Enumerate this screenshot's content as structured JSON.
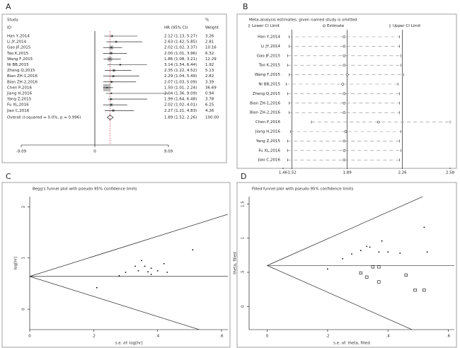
{
  "chart_data": [
    {
      "type": "forest",
      "panel": "A",
      "header": [
        "Study",
        "ID",
        "HR (95% CI)",
        "%",
        "Weight"
      ],
      "studies": [
        "Han Y,2014",
        "Li JY,2014",
        "Gao JF,2015",
        "Tao K,2015",
        "Wang F,2015",
        "Ni BB,2015",
        "Zheng Q,2015",
        "Bian ZH-1,2016",
        "Bian ZH-2,2016",
        "Chen P,2016",
        "Jiang H,2016",
        "Yang Z,2015",
        "Fu XL,2016",
        "Jiao C,2016"
      ],
      "hr": [
        2.12,
        2.63,
        2.02,
        2.0,
        1.86,
        3.14,
        2.35,
        2.29,
        2.07,
        1.5,
        2.04,
        1.99,
        2.02,
        2.27
      ],
      "lower": [
        1.13,
        1.42,
        1.02,
        1.01,
        1.08,
        1.54,
        1.22,
        1.04,
        1.03,
        1.01,
        1.36,
        1.64,
        1.02,
        1.21
      ],
      "upper": [
        5.27,
        5.85,
        3.37,
        3.96,
        3.21,
        6.44,
        4.52,
        5.49,
        5.09,
        2.24,
        9.09,
        6.48,
        4.01,
        4.83
      ],
      "ci_labels": [
        "2.12 (1.13, 5.27)",
        "2.63 (1.42, 5.85)",
        "2.02 (1.02, 3.37)",
        "2.00 (1.01, 3.96)",
        "1.86 (1.08, 3.21)",
        "3.14 (1.54, 6.44)",
        "2.35 (1.22, 4.52)",
        "2.29 (1.04, 5.49)",
        "2.07 (1.03, 5.09)",
        "1.50 (1.01, 2.24)",
        "2.04 (1.36, 9.09)",
        "1.99 (1.64, 6.48)",
        "2.02 (1.02, 4.01)",
        "2.27 (1.21, 4.83)"
      ],
      "weights": [
        3.26,
        2.81,
        10.16,
        6.32,
        12.29,
        1.92,
        5.13,
        2.82,
        3.39,
        36.69,
        0.94,
        3.78,
        6.25,
        4.26
      ],
      "overall": {
        "label": "Overall (I-squared = 0.0%, p = 0.996)",
        "hr": 1.89,
        "lower": 1.52,
        "upper": 2.26,
        "ci_label": "1.89 (1.52, 2.26)",
        "weight": 100,
        "weight_label": "100.00"
      },
      "xlim": [
        -9.09,
        9.09
      ],
      "xticks": [
        -9.09,
        0,
        9.09
      ]
    },
    {
      "type": "sensitivity",
      "panel": "B",
      "title": "Meta-analysis estimates, given named study is omitted",
      "legend": [
        "Lower CI Limit",
        "Estimate",
        "Upper CI Limit"
      ],
      "studies": [
        "Han Y,2014",
        "Li JY,2014",
        "Gao JF,2015",
        "Tao K,2015",
        "Wang F,2015",
        "Ni BB,2015",
        "Zheng Q,2015",
        "Bian ZH-1,2016",
        "Bian ZH-2,2016",
        "Chen P,2016",
        "Jiang H,2016",
        "Yang Z,2015",
        "Fu XL,2016",
        "Jiao C,2016"
      ],
      "lower": [
        1.5,
        1.5,
        1.49,
        1.49,
        1.5,
        1.48,
        1.49,
        1.5,
        1.5,
        1.65,
        1.51,
        1.49,
        1.49,
        1.49
      ],
      "estimate": [
        1.87,
        1.87,
        1.87,
        1.87,
        1.89,
        1.86,
        1.87,
        1.87,
        1.87,
        2.1,
        1.88,
        1.87,
        1.87,
        1.87
      ],
      "upper": [
        2.24,
        2.24,
        2.25,
        2.25,
        2.27,
        2.23,
        2.24,
        2.24,
        2.24,
        2.58,
        2.25,
        2.24,
        2.25,
        2.24
      ],
      "xlim": [
        1.46,
        2.58
      ],
      "xticks": [
        1.46,
        1.52,
        1.89,
        2.26,
        2.58
      ]
    },
    {
      "type": "funnel",
      "panel": "C",
      "title": "Begg's funnel plot with pseudo 95% confidence limits",
      "xlabel": "s.e. of: log[hr]",
      "ylabel": "log[hr]",
      "pooled": 0.64,
      "series": [
        {
          "marker": "dot",
          "x": [
            0.21,
            0.28,
            0.3,
            0.33,
            0.34,
            0.35,
            0.36,
            0.37,
            0.38,
            0.38,
            0.4,
            0.42,
            0.43,
            0.51
          ],
          "y": [
            0.42,
            0.65,
            0.72,
            0.84,
            0.75,
            0.95,
            0.84,
            0.73,
            0.8,
            0.68,
            0.75,
            0.89,
            0.72,
            1.16
          ]
        }
      ],
      "xlim": [
        0,
        0.62
      ],
      "ylim": [
        -0.4,
        2.2
      ],
      "xticks": [
        0,
        {
          "value": 0.2,
          "label": ".2"
        },
        {
          "value": 0.4,
          "label": ".4"
        },
        {
          "value": 0.6,
          "label": ".6"
        }
      ],
      "yticks": [
        0,
        1,
        2
      ]
    },
    {
      "type": "funnel",
      "panel": "D",
      "title": "Filled funnel plot with pseudo 95% confidence limits",
      "xlabel": "s.e. of: theta, filled",
      "ylabel": "theta, filled",
      "pooled": 0.6,
      "series": [
        {
          "marker": "dot",
          "x": [
            0.2,
            0.25,
            0.28,
            0.31,
            0.33,
            0.34,
            0.37,
            0.38,
            0.4,
            0.44,
            0.52,
            0.53
          ],
          "y": [
            0.55,
            0.7,
            0.77,
            0.82,
            0.88,
            0.87,
            0.8,
            0.96,
            0.8,
            0.78,
            1.16,
            0.8
          ]
        },
        {
          "marker": "square",
          "x": [
            0.31,
            0.33,
            0.35,
            0.37,
            0.37,
            0.46,
            0.49,
            0.52
          ],
          "y": [
            0.49,
            0.43,
            0.58,
            0.36,
            0.58,
            0.46,
            0.24,
            0.24
          ]
        }
      ],
      "xlim": [
        -0.06,
        0.62
      ],
      "ylim": [
        -0.34,
        1.61
      ],
      "xticks": [
        0,
        {
          "value": 0.2,
          "label": ".2"
        },
        {
          "value": 0.4,
          "label": ".4"
        },
        {
          "value": 0.6,
          "label": ".6"
        }
      ],
      "yticks": [
        0,
        {
          "value": 0.5,
          "label": ".5"
        },
        1,
        1.5
      ]
    }
  ]
}
